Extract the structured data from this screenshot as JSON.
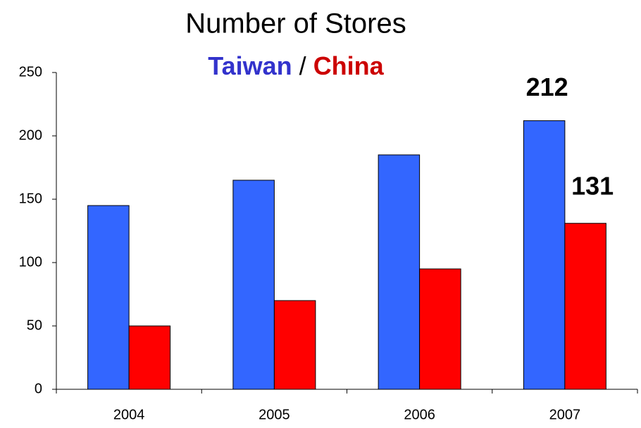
{
  "chart_data": {
    "type": "bar",
    "title": "Number of Stores",
    "subtitle_separator": "/",
    "categories": [
      "2004",
      "2005",
      "2006",
      "2007"
    ],
    "series": [
      {
        "name": "Taiwan",
        "color": "#3366ff",
        "label_color": "#3333cc",
        "values": [
          145,
          165,
          185,
          212
        ],
        "value_labels": [
          null,
          null,
          null,
          "212"
        ]
      },
      {
        "name": "China",
        "color": "#ff0000",
        "label_color": "#cc0000",
        "values": [
          50,
          70,
          95,
          131
        ],
        "value_labels": [
          null,
          null,
          null,
          "131"
        ]
      }
    ],
    "ylim": [
      0,
      250
    ],
    "yticks": [
      0,
      50,
      100,
      150,
      200,
      250
    ],
    "grid": false
  }
}
